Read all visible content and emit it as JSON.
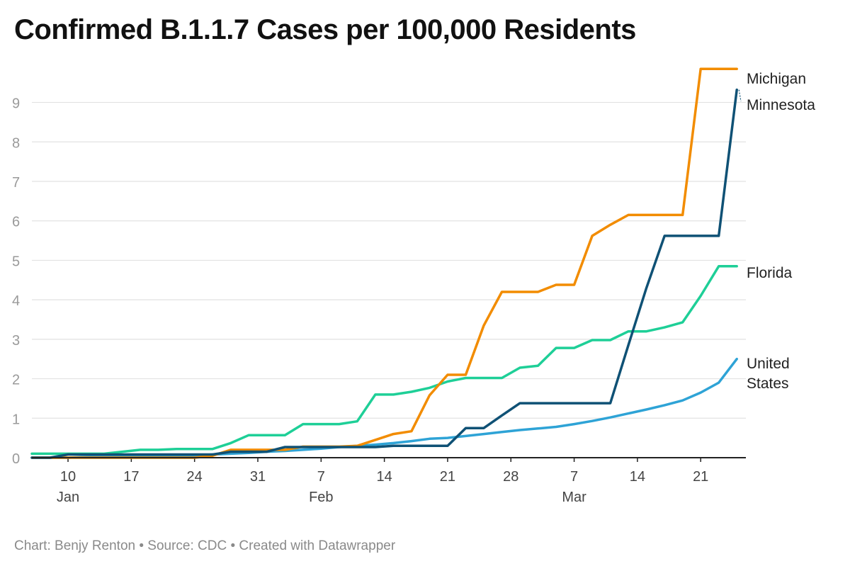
{
  "title": "Confirmed B.1.1.7 Cases per 100,000 Residents",
  "footer": "Chart: Benjy Renton • Source: CDC • Created with Datawrapper",
  "chart_data": {
    "type": "line",
    "title": "Confirmed B.1.1.7 Cases per 100,000 Residents",
    "xlabel": "",
    "ylabel": "",
    "x_type": "date",
    "xlim": [
      "2021-01-06",
      "2021-03-26"
    ],
    "ylim": [
      0,
      9.8
    ],
    "y_ticks": [
      0,
      1,
      2,
      3,
      4,
      5,
      6,
      7,
      8,
      9
    ],
    "x_ticks": [
      {
        "date": "2021-01-10",
        "label": "10",
        "month": "Jan"
      },
      {
        "date": "2021-01-17",
        "label": "17",
        "month": ""
      },
      {
        "date": "2021-01-24",
        "label": "24",
        "month": ""
      },
      {
        "date": "2021-01-31",
        "label": "31",
        "month": ""
      },
      {
        "date": "2021-02-07",
        "label": "7",
        "month": "Feb"
      },
      {
        "date": "2021-02-14",
        "label": "14",
        "month": ""
      },
      {
        "date": "2021-02-21",
        "label": "21",
        "month": ""
      },
      {
        "date": "2021-02-28",
        "label": "28",
        "month": ""
      },
      {
        "date": "2021-03-07",
        "label": "7",
        "month": "Mar"
      },
      {
        "date": "2021-03-14",
        "label": "14",
        "month": ""
      },
      {
        "date": "2021-03-21",
        "label": "21",
        "month": ""
      }
    ],
    "grid": true,
    "legend": "direct labels at line ends (right)",
    "series": [
      {
        "name": "Michigan",
        "color": "#f28c00",
        "label_lines": [
          "Michigan"
        ],
        "x": [
          "2021-01-06",
          "2021-01-08",
          "2021-01-10",
          "2021-01-12",
          "2021-01-14",
          "2021-01-16",
          "2021-01-18",
          "2021-01-20",
          "2021-01-22",
          "2021-01-24",
          "2021-01-26",
          "2021-01-28",
          "2021-01-30",
          "2021-02-01",
          "2021-02-03",
          "2021-02-05",
          "2021-02-07",
          "2021-02-09",
          "2021-02-11",
          "2021-02-13",
          "2021-02-15",
          "2021-02-17",
          "2021-02-19",
          "2021-02-21",
          "2021-02-23",
          "2021-02-25",
          "2021-02-27",
          "2021-03-01",
          "2021-03-03",
          "2021-03-05",
          "2021-03-07",
          "2021-03-09",
          "2021-03-11",
          "2021-03-13",
          "2021-03-15",
          "2021-03-17",
          "2021-03-19",
          "2021-03-21",
          "2021-03-23",
          "2021-03-25"
        ],
        "values": [
          0,
          0,
          0,
          0,
          0,
          0,
          0,
          0,
          0,
          0,
          0.05,
          0.2,
          0.2,
          0.2,
          0.2,
          0.28,
          0.28,
          0.28,
          0.3,
          0.45,
          0.6,
          0.67,
          1.58,
          2.1,
          2.1,
          3.35,
          4.2,
          4.2,
          4.2,
          4.38,
          4.38,
          5.62,
          5.9,
          6.15,
          6.15,
          6.15,
          6.15,
          9.85,
          9.85,
          9.85
        ]
      },
      {
        "name": "Minnesota",
        "color": "#0f5175",
        "label_lines": [
          "Minnesota"
        ],
        "x": [
          "2021-01-06",
          "2021-01-08",
          "2021-01-10",
          "2021-01-12",
          "2021-01-14",
          "2021-01-16",
          "2021-01-18",
          "2021-01-20",
          "2021-01-22",
          "2021-01-24",
          "2021-01-26",
          "2021-01-28",
          "2021-01-30",
          "2021-02-01",
          "2021-02-03",
          "2021-02-05",
          "2021-02-07",
          "2021-02-09",
          "2021-02-11",
          "2021-02-13",
          "2021-02-15",
          "2021-02-17",
          "2021-02-19",
          "2021-02-21",
          "2021-02-23",
          "2021-02-25",
          "2021-02-27",
          "2021-03-01",
          "2021-03-03",
          "2021-03-05",
          "2021-03-07",
          "2021-03-09",
          "2021-03-11",
          "2021-03-13",
          "2021-03-15",
          "2021-03-17",
          "2021-03-19",
          "2021-03-21",
          "2021-03-23",
          "2021-03-25"
        ],
        "values": [
          0,
          0,
          0.08,
          0.08,
          0.08,
          0.08,
          0.08,
          0.08,
          0.08,
          0.08,
          0.08,
          0.15,
          0.15,
          0.15,
          0.27,
          0.27,
          0.27,
          0.27,
          0.27,
          0.27,
          0.3,
          0.3,
          0.3,
          0.3,
          0.75,
          0.75,
          1.07,
          1.38,
          1.38,
          1.38,
          1.38,
          1.38,
          1.38,
          2.85,
          4.3,
          5.62,
          5.62,
          5.62,
          5.62,
          9.32
        ]
      },
      {
        "name": "Florida",
        "color": "#1ecf97",
        "label_lines": [
          "Florida"
        ],
        "x": [
          "2021-01-06",
          "2021-01-08",
          "2021-01-10",
          "2021-01-12",
          "2021-01-14",
          "2021-01-16",
          "2021-01-18",
          "2021-01-20",
          "2021-01-22",
          "2021-01-24",
          "2021-01-26",
          "2021-01-28",
          "2021-01-30",
          "2021-02-01",
          "2021-02-03",
          "2021-02-05",
          "2021-02-07",
          "2021-02-09",
          "2021-02-11",
          "2021-02-13",
          "2021-02-15",
          "2021-02-17",
          "2021-02-19",
          "2021-02-21",
          "2021-02-23",
          "2021-02-25",
          "2021-02-27",
          "2021-03-01",
          "2021-03-03",
          "2021-03-05",
          "2021-03-07",
          "2021-03-09",
          "2021-03-11",
          "2021-03-13",
          "2021-03-15",
          "2021-03-17",
          "2021-03-19",
          "2021-03-21",
          "2021-03-23",
          "2021-03-25"
        ],
        "values": [
          0.1,
          0.1,
          0.1,
          0.1,
          0.1,
          0.15,
          0.2,
          0.2,
          0.22,
          0.22,
          0.22,
          0.37,
          0.57,
          0.57,
          0.57,
          0.85,
          0.85,
          0.85,
          0.92,
          1.6,
          1.6,
          1.67,
          1.77,
          1.93,
          2.02,
          2.02,
          2.02,
          2.28,
          2.33,
          2.78,
          2.78,
          2.98,
          2.98,
          3.2,
          3.2,
          3.3,
          3.43,
          4.1,
          4.85,
          4.85
        ]
      },
      {
        "name": "United States",
        "color": "#2ea3d6",
        "label_lines": [
          "United",
          "States"
        ],
        "x": [
          "2021-01-06",
          "2021-01-08",
          "2021-01-10",
          "2021-01-12",
          "2021-01-14",
          "2021-01-16",
          "2021-01-18",
          "2021-01-20",
          "2021-01-22",
          "2021-01-24",
          "2021-01-26",
          "2021-01-28",
          "2021-01-30",
          "2021-02-01",
          "2021-02-03",
          "2021-02-05",
          "2021-02-07",
          "2021-02-09",
          "2021-02-11",
          "2021-02-13",
          "2021-02-15",
          "2021-02-17",
          "2021-02-19",
          "2021-02-21",
          "2021-02-23",
          "2021-02-25",
          "2021-02-27",
          "2021-03-01",
          "2021-03-03",
          "2021-03-05",
          "2021-03-07",
          "2021-03-09",
          "2021-03-11",
          "2021-03-13",
          "2021-03-15",
          "2021-03-17",
          "2021-03-19",
          "2021-03-21",
          "2021-03-23",
          "2021-03-25"
        ],
        "values": [
          0,
          0,
          0,
          0.02,
          0.03,
          0.04,
          0.05,
          0.05,
          0.06,
          0.06,
          0.08,
          0.1,
          0.12,
          0.15,
          0.17,
          0.2,
          0.23,
          0.27,
          0.3,
          0.33,
          0.37,
          0.42,
          0.48,
          0.5,
          0.55,
          0.6,
          0.65,
          0.7,
          0.74,
          0.78,
          0.85,
          0.93,
          1.02,
          1.12,
          1.22,
          1.33,
          1.45,
          1.65,
          1.9,
          2.5
        ]
      }
    ]
  }
}
